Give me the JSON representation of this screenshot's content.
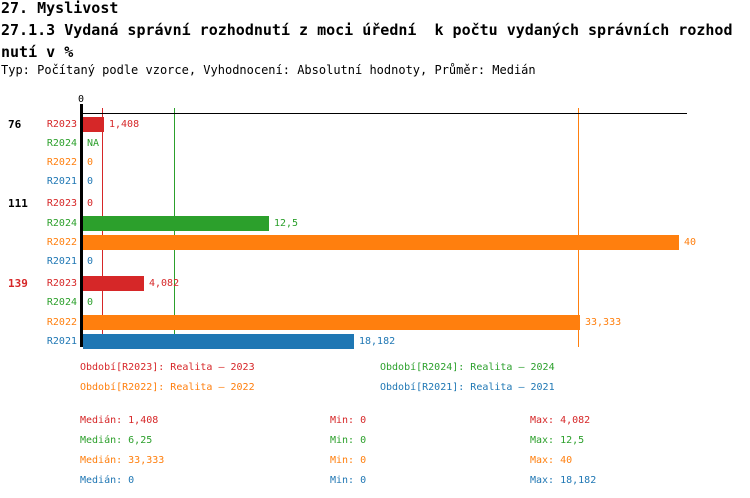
{
  "header": {
    "line1": "27. Myslivost",
    "line2": "27.1.3 Vydaná správní rozhodnutí z moci úřední  k počtu vydaných správních rozhod",
    "line3": "nutí v %",
    "meta": "Typ: Počítaný podle vzorce, Vyhodnocení: Absolutní hodnoty, Průměr: Medián"
  },
  "colors": {
    "R2023": "#d62728",
    "R2024": "#2ca02c",
    "R2022": "#ff7f0e",
    "R2021": "#1f77b4",
    "axis": "#000000"
  },
  "chart_data": {
    "type": "bar",
    "orientation": "horizontal",
    "title": "27.1.3 Vydaná správní rozhodnutí z moci úřední  k počtu vydaných správních rozhodnutí v %",
    "xlabel": "",
    "ylabel": "",
    "xlim": [
      0,
      40
    ],
    "grid": false,
    "axis": {
      "tick_label": "0",
      "min": 0,
      "max": 40
    },
    "series_order": [
      "R2023",
      "R2024",
      "R2022",
      "R2021"
    ],
    "groups": [
      {
        "label": "76",
        "label_color": "#000000",
        "rows": [
          {
            "series": "R2023",
            "value": 1.408,
            "display": "1,408",
            "bar": true
          },
          {
            "series": "R2024",
            "value": null,
            "display": "NA",
            "bar": false
          },
          {
            "series": "R2022",
            "value": 0,
            "display": "0",
            "bar": false
          },
          {
            "series": "R2021",
            "value": 0,
            "display": "0",
            "bar": false
          }
        ]
      },
      {
        "label": "111",
        "label_color": "#000000",
        "rows": [
          {
            "series": "R2023",
            "value": 0,
            "display": "0",
            "bar": false
          },
          {
            "series": "R2024",
            "value": 12.5,
            "display": "12,5",
            "bar": true
          },
          {
            "series": "R2022",
            "value": 40,
            "display": "40",
            "bar": true
          },
          {
            "series": "R2021",
            "value": 0,
            "display": "0",
            "bar": false
          }
        ]
      },
      {
        "label": "139",
        "label_color": "#d62728",
        "rows": [
          {
            "series": "R2023",
            "value": 4.082,
            "display": "4,082",
            "bar": true
          },
          {
            "series": "R2024",
            "value": 0,
            "display": "0",
            "bar": false
          },
          {
            "series": "R2022",
            "value": 33.333,
            "display": "33,333",
            "bar": true
          },
          {
            "series": "R2021",
            "value": 18.182,
            "display": "18,182",
            "bar": true
          }
        ]
      }
    ],
    "median_lines": [
      {
        "series": "R2023",
        "value": 1.408
      },
      {
        "series": "R2024",
        "value": 6.25
      },
      {
        "series": "R2022",
        "value": 33.333
      },
      {
        "series": "R2021",
        "value": 0
      }
    ]
  },
  "legend": [
    {
      "series": "R2023",
      "text": "Období[R2023]: Realita – 2023"
    },
    {
      "series": "R2024",
      "text": "Období[R2024]: Realita – 2024"
    },
    {
      "series": "R2022",
      "text": "Období[R2022]: Realita – 2022"
    },
    {
      "series": "R2021",
      "text": "Období[R2021]: Realita – 2021"
    }
  ],
  "stats": [
    {
      "series": "R2023",
      "median": "Medián: 1,408",
      "min": "Min: 0",
      "max": "Max: 4,082"
    },
    {
      "series": "R2024",
      "median": "Medián: 6,25",
      "min": "Min: 0",
      "max": "Max: 12,5"
    },
    {
      "series": "R2022",
      "median": "Medián: 33,333",
      "min": "Min: 0",
      "max": "Max: 40"
    },
    {
      "series": "R2021",
      "median": "Medián: 0",
      "min": "Min: 0",
      "max": "Max: 18,182"
    }
  ]
}
